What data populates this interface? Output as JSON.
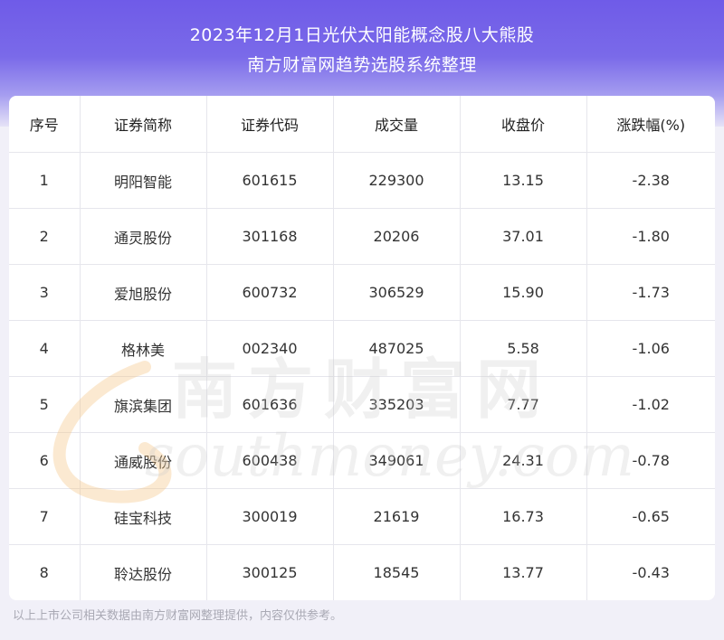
{
  "header": {
    "title_line1": "2023年12月1日光伏太阳能概念股八大熊股",
    "title_line2": "南方财富网趋势选股系统整理"
  },
  "table": {
    "columns": [
      "序号",
      "证券简称",
      "证券代码",
      "成交量",
      "收盘价",
      "涨跌幅(%)"
    ],
    "rows": [
      [
        "1",
        "明阳智能",
        "601615",
        "229300",
        "13.15",
        "-2.38"
      ],
      [
        "2",
        "通灵股份",
        "301168",
        "20206",
        "37.01",
        "-1.80"
      ],
      [
        "3",
        "爱旭股份",
        "600732",
        "306529",
        "15.90",
        "-1.73"
      ],
      [
        "4",
        "格林美",
        "002340",
        "487025",
        "5.58",
        "-1.06"
      ],
      [
        "5",
        "旗滨集团",
        "601636",
        "335203",
        "7.77",
        "-1.02"
      ],
      [
        "6",
        "通威股份",
        "600438",
        "349061",
        "24.31",
        "-0.78"
      ],
      [
        "7",
        "硅宝科技",
        "300019",
        "21619",
        "16.73",
        "-0.65"
      ],
      [
        "8",
        "聆达股份",
        "300125",
        "18545",
        "13.77",
        "-0.43"
      ]
    ]
  },
  "watermark": {
    "cn": "南方财富网",
    "en": "southmoney.com"
  },
  "footer": {
    "note": "以上上市公司相关数据由南方财富网整理提供，内容仅供参考。"
  },
  "colors": {
    "header_top": "#6f5be8",
    "watermark": "#c9c9c9",
    "watermark_s": "#f3c07a"
  }
}
